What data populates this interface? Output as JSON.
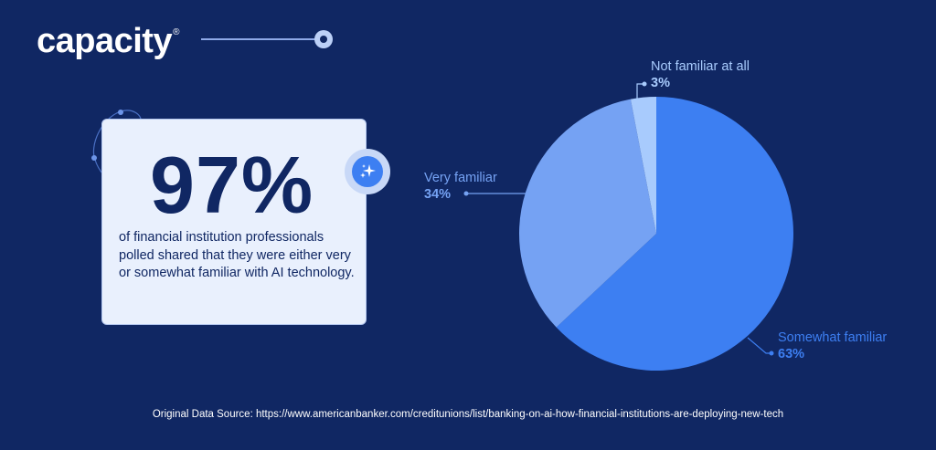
{
  "brand": {
    "name": "capacity",
    "mark": "®"
  },
  "stat": {
    "value": "97%",
    "description": "of financial institution professionals polled shared that they were either very or somewhat familiar with AI technology."
  },
  "colors": {
    "background": "#102763",
    "somewhat": "#3d7ff2",
    "very": "#75a2f3",
    "not": "#a8cbfd",
    "card": "#e9f0fd"
  },
  "chart_data": {
    "type": "pie",
    "slices": [
      {
        "label": "Somewhat familiar",
        "value": 63,
        "display": "63%",
        "color": "#3d7ff2"
      },
      {
        "label": "Very familiar",
        "value": 34,
        "display": "34%",
        "color": "#75a2f3"
      },
      {
        "label": "Not familiar at all",
        "value": 3,
        "display": "3%",
        "color": "#a8cbfd"
      }
    ]
  },
  "source": "Original Data Source: https://www.americanbanker.com/creditunions/list/banking-on-ai-how-financial-institutions-are-deploying-new-tech"
}
